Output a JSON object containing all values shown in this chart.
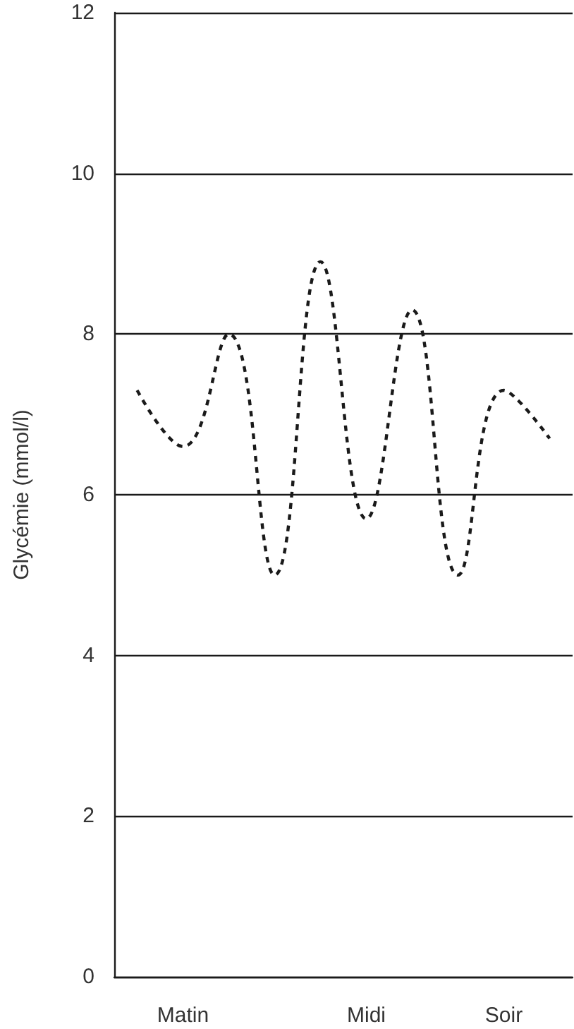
{
  "chart_data": {
    "type": "line",
    "ylabel": "Glycémie (mmol/l)",
    "categories": [
      null,
      "Matin",
      null,
      null,
      null,
      "Midi",
      null,
      null,
      "Soir",
      null
    ],
    "series": [
      {
        "color": "#1a1a1a",
        "values": [
          7.3,
          6.6,
          8.0,
          5.0,
          8.9,
          5.7,
          8.3,
          5.0,
          7.3,
          6.7
        ]
      }
    ],
    "ylim": [
      0,
      12
    ],
    "yticks": [
      0,
      2,
      4,
      6,
      8,
      10,
      12
    ],
    "grid": "y",
    "line_style": "dashed",
    "marker": "none"
  }
}
